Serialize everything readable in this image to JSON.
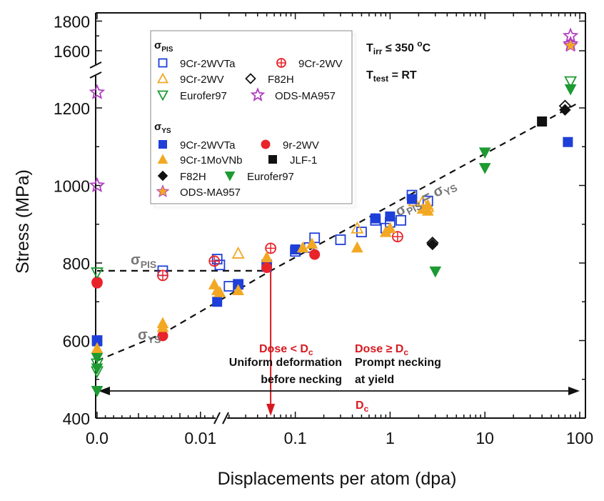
{
  "chart_data": {
    "type": "scatter",
    "xlabel": "Displacements per atom (dpa)",
    "ylabel": "Stress (MPa)",
    "x_scale": "log with broken axis: linear segment at 0.0, log segment from 0.001 to 100",
    "y_scale": "broken axis: 400-1300 and 1550-1800",
    "ylim_lower": [
      400,
      1300
    ],
    "ylim_upper": [
      1550,
      1800
    ],
    "xlim_log": [
      0.001,
      100
    ],
    "x_ticks": [
      {
        "value": 0,
        "label": "0.0"
      },
      {
        "value": 0.01,
        "label": "0.01"
      },
      {
        "value": 0.1,
        "label": "0.1"
      },
      {
        "value": 1,
        "label": "1"
      },
      {
        "value": 10,
        "label": "10"
      },
      {
        "value": 100,
        "label": "100"
      }
    ],
    "y_ticks": [
      {
        "value": 400,
        "label": "400"
      },
      {
        "value": 600,
        "label": "600"
      },
      {
        "value": 800,
        "label": "800"
      },
      {
        "value": 1000,
        "label": "1000"
      },
      {
        "value": 1200,
        "label": "1200"
      },
      {
        "value": 1600,
        "label": "1600"
      },
      {
        "value": 1800,
        "label": "1800"
      }
    ],
    "annotations": {
      "condition1": "T",
      "condition1_sub": "irr",
      "condition1_rest": "≤ 350 ",
      "condition1_sup": "o",
      "condition1_unit": "C",
      "condition2": "T",
      "condition2_sub": "test",
      "condition2_rest": "= RT",
      "pis_label": "σ",
      "pis_sub": "PIS",
      "ys_label": "σ",
      "ys_sub": "YS",
      "equal_label_a": "σ",
      "equal_sub_a": "PIS",
      "equal_mid": " = σ",
      "equal_sub_b": "YS",
      "dose_lt": "Dose < D",
      "dose_lt_sub": "c",
      "dose_ge": "Dose ≥ D",
      "dose_ge_sub": "c",
      "uniform_1": "Uniform deformation",
      "uniform_2": "before necking",
      "prompt_1": "Prompt necking",
      "prompt_2": "at yield",
      "dc_label": "D",
      "dc_sub": "c"
    },
    "critical_dose_dpa": 0.055,
    "pis_plateau": {
      "value": 780,
      "x_from": 0,
      "x_to": 0.055
    },
    "ys_trend": [
      {
        "x": 0,
        "y": 548
      },
      {
        "x": 0.004,
        "y": 618
      },
      {
        "x": 0.055,
        "y": 780
      },
      {
        "x": 100,
        "y": 1215
      }
    ],
    "legend": {
      "pis_header": "σ",
      "pis_header_sub": "PIS",
      "ys_header": "σ",
      "ys_header_sub": "YS",
      "pis_entries": [
        {
          "label": "9Cr-2WVTa",
          "marker": "square-open",
          "color": "#1f3fd9"
        },
        {
          "label": "9Cr-2WV",
          "marker": "circle-plus",
          "color": "#e8232a"
        },
        {
          "label": "9Cr-2WV",
          "marker": "triangle-open",
          "color": "#f3a823"
        },
        {
          "label": "F82H",
          "marker": "diamond-open",
          "color": "#111111"
        },
        {
          "label": "Eurofer97",
          "marker": "triangle-down-open",
          "color": "#1d9a32"
        },
        {
          "label": "ODS-MA957",
          "marker": "star-open",
          "color": "#b03fc0"
        }
      ],
      "ys_entries": [
        {
          "label": "9Cr-2WVTa",
          "marker": "square",
          "color": "#1f3fd9"
        },
        {
          "label": "9r-2WV",
          "marker": "circle",
          "color": "#e8232a"
        },
        {
          "label": "9Cr-1MoVNb",
          "marker": "triangle",
          "color": "#f3a823"
        },
        {
          "label": "JLF-1",
          "marker": "square",
          "color": "#111111"
        },
        {
          "label": "F82H",
          "marker": "diamond",
          "color": "#111111"
        },
        {
          "label": "Eurofer97",
          "marker": "triangle-down",
          "color": "#1d9a32"
        },
        {
          "label": "ODS-MA957",
          "marker": "star",
          "color": "#f3a823"
        }
      ]
    },
    "series": [
      {
        "name": "σPIS 9Cr-2WVTa",
        "marker": "square-open",
        "color": "#1f3fd9",
        "points": [
          [
            0,
            600
          ],
          [
            0.004,
            780
          ],
          [
            0.015,
            810
          ],
          [
            0.016,
            795
          ],
          [
            0.02,
            740
          ],
          [
            0.025,
            745
          ],
          [
            0.05,
            795
          ],
          [
            0.1,
            830
          ],
          [
            0.14,
            840
          ],
          [
            0.16,
            865
          ],
          [
            0.3,
            860
          ],
          [
            0.5,
            880
          ],
          [
            0.7,
            910
          ],
          [
            0.9,
            890
          ],
          [
            1.0,
            905
          ],
          [
            1.3,
            910
          ],
          [
            1.7,
            975
          ],
          [
            2.5,
            960
          ]
        ]
      },
      {
        "name": "σPIS 9Cr-2WV",
        "marker": "circle-plus",
        "color": "#e8232a",
        "points": [
          [
            0,
            750
          ],
          [
            0.004,
            768
          ],
          [
            0.014,
            805
          ],
          [
            0.055,
            838
          ],
          [
            1.2,
            868
          ]
        ]
      },
      {
        "name": "σPIS 9Cr-2WV (triangle)",
        "marker": "triangle-open",
        "color": "#f3a823",
        "points": [
          [
            0.025,
            825
          ],
          [
            0.45,
            890
          ],
          [
            1.8,
            960
          ],
          [
            2.2,
            958
          ],
          [
            2.5,
            945
          ]
        ]
      },
      {
        "name": "σPIS F82H",
        "marker": "diamond-open",
        "color": "#111111",
        "points": [
          [
            2.8,
            852
          ],
          [
            70,
            1205
          ]
        ]
      },
      {
        "name": "σPIS Eurofer97",
        "marker": "triangle-down-open",
        "color": "#1d9a32",
        "points": [
          [
            0,
            775
          ],
          [
            0,
            540
          ],
          [
            0,
            520
          ],
          [
            80,
            1268
          ]
        ]
      },
      {
        "name": "σPIS ODS-MA957",
        "marker": "star-open",
        "color": "#b03fc0",
        "points": [
          [
            0,
            1240
          ],
          [
            0,
            1000
          ],
          [
            80,
            1700
          ],
          [
            80,
            1645
          ]
        ]
      },
      {
        "name": "σYS 9Cr-2WVTa",
        "marker": "square",
        "color": "#1f3fd9",
        "points": [
          [
            0,
            598
          ],
          [
            0.015,
            700
          ],
          [
            0.025,
            745
          ],
          [
            0.05,
            790
          ],
          [
            0.1,
            835
          ],
          [
            0.7,
            915
          ],
          [
            1.0,
            920
          ],
          [
            1.7,
            965
          ],
          [
            75,
            1112
          ]
        ]
      },
      {
        "name": "σYS 9r-2WV",
        "marker": "circle",
        "color": "#e8232a",
        "points": [
          [
            0,
            748
          ],
          [
            0.004,
            612
          ],
          [
            0.05,
            788
          ],
          [
            0.16,
            822
          ]
        ]
      },
      {
        "name": "σYS 9Cr-1MoVNb",
        "marker": "triangle",
        "color": "#f3a823",
        "points": [
          [
            0,
            580
          ],
          [
            0.004,
            645
          ],
          [
            0.004,
            635
          ],
          [
            0.014,
            745
          ],
          [
            0.015,
            730
          ],
          [
            0.016,
            725
          ],
          [
            0.025,
            730
          ],
          [
            0.05,
            815
          ],
          [
            0.12,
            840
          ],
          [
            0.15,
            850
          ],
          [
            0.45,
            840
          ],
          [
            0.9,
            880
          ],
          [
            1.0,
            890
          ],
          [
            2.2,
            940
          ],
          [
            2.5,
            950
          ],
          [
            2.5,
            935
          ]
        ]
      },
      {
        "name": "σYS JLF-1",
        "marker": "square",
        "color": "#111111",
        "points": [
          [
            40,
            1165
          ]
        ]
      },
      {
        "name": "σYS F82H",
        "marker": "diamond",
        "color": "#111111",
        "points": [
          [
            2.8,
            848
          ],
          [
            70,
            1195
          ]
        ]
      },
      {
        "name": "σYS Eurofer97",
        "marker": "triangle-down",
        "color": "#1d9a32",
        "points": [
          [
            0,
            555
          ],
          [
            0,
            528
          ],
          [
            0,
            470
          ],
          [
            3,
            778
          ],
          [
            10,
            1085
          ],
          [
            10,
            1045
          ],
          [
            80,
            1248
          ]
        ]
      },
      {
        "name": "σYS ODS-MA957",
        "marker": "star",
        "color": "#f3a823",
        "points": [
          [
            80,
            1635
          ]
        ]
      }
    ]
  }
}
